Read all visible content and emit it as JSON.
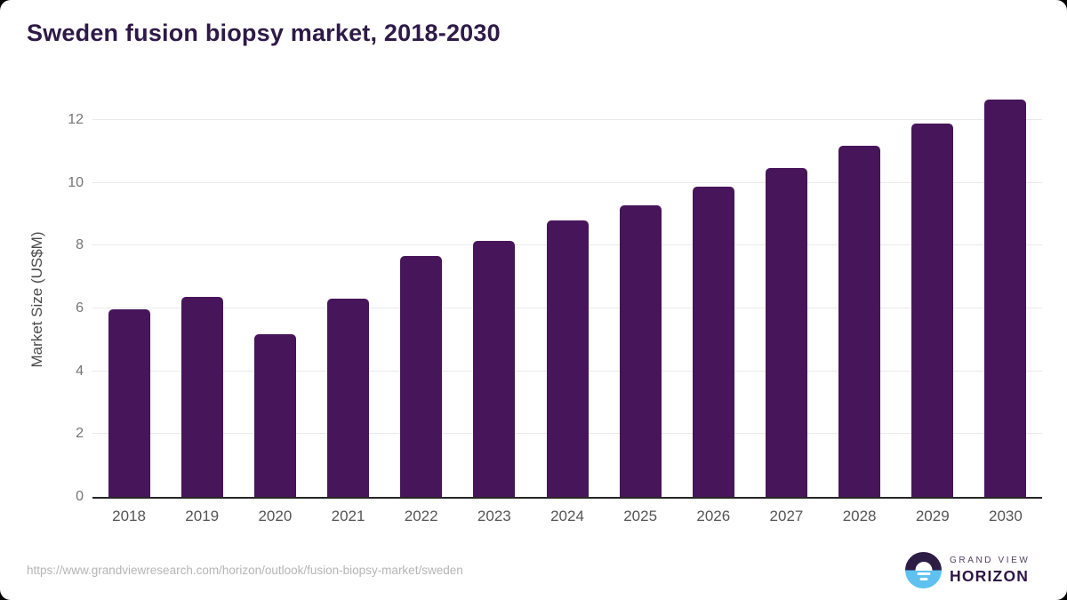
{
  "chart_data": {
    "type": "bar",
    "title": "Sweden fusion biopsy market, 2018-2030",
    "categories": [
      "2018",
      "2019",
      "2020",
      "2021",
      "2022",
      "2023",
      "2024",
      "2025",
      "2026",
      "2027",
      "2028",
      "2029",
      "2030"
    ],
    "values": [
      5.97,
      6.38,
      5.18,
      6.3,
      7.68,
      8.16,
      8.79,
      9.28,
      9.87,
      10.46,
      11.17,
      11.88,
      12.65
    ],
    "xlabel": "",
    "ylabel": "Market Size (US$M)",
    "ylim": [
      0,
      13
    ],
    "yticks": [
      0,
      2,
      4,
      6,
      8,
      10,
      12
    ],
    "grid": "horizontal-only",
    "legend": "none",
    "bar_color": "#471559"
  },
  "colors": {
    "title": "#2e1a47",
    "bar": "#471559",
    "gridline": "#e9e9e9",
    "axis_line": "#262626",
    "y_tick_text": "#757575",
    "x_tick_text": "#555555",
    "url_text": "#b5b5b5",
    "logo_purple": "#2d1c44",
    "logo_blue": "#5ec1f0"
  },
  "footer": {
    "url": "https://www.grandviewresearch.com/horizon/outlook/fusion-biopsy-market/sweden",
    "logo": {
      "line1": "GRAND VIEW",
      "line2": "HORIZON"
    }
  }
}
